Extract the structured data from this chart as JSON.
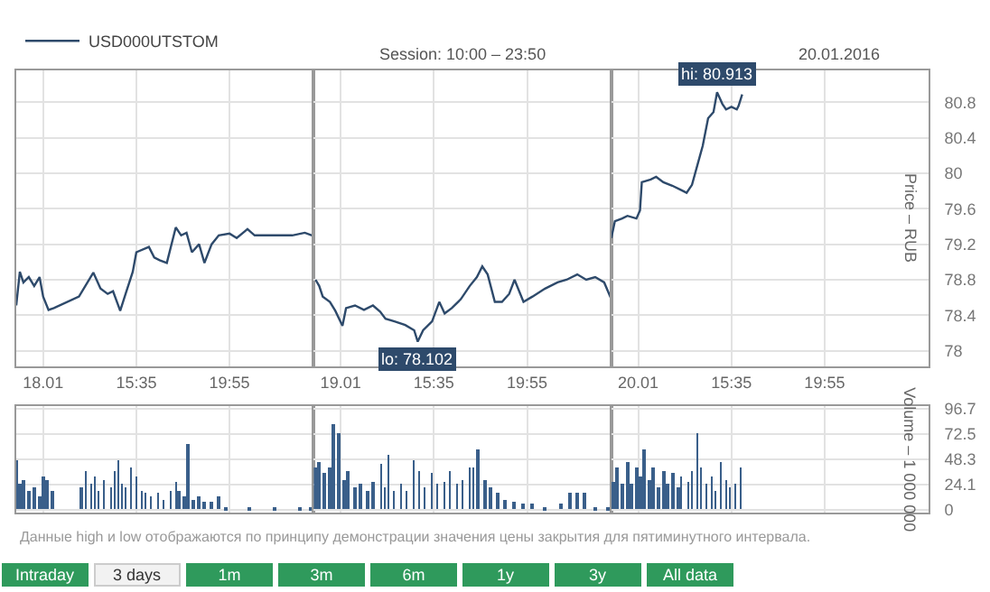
{
  "chart_data": [
    {
      "type": "line",
      "legend": "top left",
      "grid": true,
      "marker": "none",
      "line_style": "solid",
      "tick_labels": "x",
      "xlim": [
        "2016-01-18T10:00",
        "2016-01-18T23:50"
      ],
      "xticks": [
        {
          "value": "2016-01-18T11:15",
          "label": "18.01"
        },
        {
          "value": "2016-01-18T15:35",
          "label": "15:35"
        },
        {
          "value": "2016-01-18T19:55",
          "label": "19:55"
        }
      ],
      "ylim": [
        77.82,
        81.16
      ],
      "yticks": [
        78,
        78.4,
        78.8,
        79.2,
        79.6,
        80,
        80.4,
        80.8
      ],
      "series": [
        {
          "name": "USD000UTSTOM",
          "color": "#2e4a6b",
          "x": [
            "2016-01-18T10:00",
            "2016-01-18T10:10",
            "2016-01-18T10:20",
            "2016-01-18T10:35",
            "2016-01-18T10:50",
            "2016-01-18T11:05",
            "2016-01-18T11:15",
            "2016-01-18T11:30",
            "2016-01-18T11:45",
            "2016-01-18T12:55",
            "2016-01-18T13:35",
            "2016-01-18T13:55",
            "2016-01-18T14:15",
            "2016-01-18T14:30",
            "2016-01-18T14:50",
            "2016-01-18T15:05",
            "2016-01-18T15:25",
            "2016-01-18T15:35",
            "2016-01-18T16:10",
            "2016-01-18T16:25",
            "2016-01-18T16:40",
            "2016-01-18T17:00",
            "2016-01-18T17:25",
            "2016-01-18T17:40",
            "2016-01-18T17:55",
            "2016-01-18T18:10",
            "2016-01-18T18:30",
            "2016-01-18T18:45",
            "2016-01-18T19:05",
            "2016-01-18T19:25",
            "2016-01-18T19:55",
            "2016-01-18T20:15",
            "2016-01-18T20:45",
            "2016-01-18T21:05",
            "2016-01-18T21:55",
            "2016-01-18T22:50",
            "2016-01-18T23:25",
            "2016-01-18T23:45"
          ],
          "values": [
            78.51,
            78.89,
            78.77,
            78.83,
            78.73,
            78.83,
            78.61,
            78.46,
            78.48,
            78.61,
            78.88,
            78.7,
            78.64,
            78.67,
            78.45,
            78.64,
            78.89,
            79.11,
            79.17,
            79.05,
            79.02,
            78.99,
            79.39,
            79.3,
            79.33,
            79.11,
            79.2,
            78.99,
            79.2,
            79.3,
            79.32,
            79.27,
            79.37,
            79.3,
            79.3,
            79.3,
            79.33,
            79.3
          ]
        }
      ]
    },
    {
      "type": "line",
      "subtitle": "Session: 10:00 – 23:50",
      "grid": true,
      "marker": "none",
      "line_style": "solid",
      "tick_labels": "x",
      "annotations": [
        {
          "text": "lo: 78.102",
          "x": "2016-01-19T14:50",
          "y": 78.102
        }
      ],
      "xlim": [
        "2016-01-19T10:00",
        "2016-01-19T23:50"
      ],
      "xticks": [
        {
          "value": "2016-01-19T11:15",
          "label": "19.01"
        },
        {
          "value": "2016-01-19T15:35",
          "label": "15:35"
        },
        {
          "value": "2016-01-19T19:55",
          "label": "19:55"
        }
      ],
      "ylim": [
        77.82,
        81.16
      ],
      "yticks": [
        78,
        78.4,
        78.8,
        79.2,
        79.6,
        80,
        80.4,
        80.8
      ],
      "series": [
        {
          "color": "#2e4a6b",
          "x": [
            "2016-01-19T10:05",
            "2016-01-19T10:15",
            "2016-01-19T10:25",
            "2016-01-19T10:45",
            "2016-01-19T11:00",
            "2016-01-19T11:20",
            "2016-01-19T11:30",
            "2016-01-19T11:55",
            "2016-01-19T12:20",
            "2016-01-19T12:45",
            "2016-01-19T13:05",
            "2016-01-19T13:20",
            "2016-01-19T13:45",
            "2016-01-19T14:15",
            "2016-01-19T14:40",
            "2016-01-19T14:50",
            "2016-01-19T15:05",
            "2016-01-19T15:30",
            "2016-01-19T15:50",
            "2016-01-19T16:05",
            "2016-01-19T16:25",
            "2016-01-19T16:50",
            "2016-01-19T17:15",
            "2016-01-19T17:35",
            "2016-01-19T17:50",
            "2016-01-19T18:05",
            "2016-01-19T18:25",
            "2016-01-19T18:45",
            "2016-01-19T19:05",
            "2016-01-19T19:20",
            "2016-01-19T19:45",
            "2016-01-19T20:10",
            "2016-01-19T20:45",
            "2016-01-19T21:20",
            "2016-01-19T21:45",
            "2016-01-19T22:15",
            "2016-01-19T22:40",
            "2016-01-19T23:05",
            "2016-01-19T23:30",
            "2016-01-19T23:50"
          ],
          "values": [
            78.8,
            78.73,
            78.61,
            78.55,
            78.45,
            78.28,
            78.48,
            78.51,
            78.46,
            78.51,
            78.44,
            78.36,
            78.33,
            78.29,
            78.23,
            78.102,
            78.23,
            78.33,
            78.55,
            78.42,
            78.48,
            78.58,
            78.73,
            78.83,
            78.95,
            78.86,
            78.55,
            78.55,
            78.64,
            78.8,
            78.55,
            78.61,
            78.7,
            78.77,
            78.8,
            78.86,
            78.8,
            78.83,
            78.77,
            78.58
          ]
        }
      ]
    },
    {
      "type": "line",
      "ylabel": "Price – RUB",
      "grid": true,
      "marker": "none",
      "line_style": "solid",
      "annotations": [
        "20.01.2016",
        {
          "text": "hi: 80.913",
          "x": "2016-01-20T14:55",
          "y": 80.913
        }
      ],
      "xlim": [
        "2016-01-20T10:00",
        "2016-01-21T00:45"
      ],
      "xticks": [
        {
          "value": "2016-01-20T11:15",
          "label": "20.01"
        },
        {
          "value": "2016-01-20T15:35",
          "label": "15:35"
        },
        {
          "value": "2016-01-20T19:55",
          "label": "19:55"
        }
      ],
      "ylim": [
        77.82,
        81.16
      ],
      "yticks": [
        78,
        78.4,
        78.8,
        79.2,
        79.6,
        80,
        80.4,
        80.8
      ],
      "series": [
        {
          "color": "#2e4a6b",
          "x": [
            "2016-01-20T10:00",
            "2016-01-20T10:10",
            "2016-01-20T10:30",
            "2016-01-20T10:45",
            "2016-01-20T11:10",
            "2016-01-20T11:20",
            "2016-01-20T11:25",
            "2016-01-20T11:50",
            "2016-01-20T12:05",
            "2016-01-20T12:25",
            "2016-01-20T12:50",
            "2016-01-20T13:15",
            "2016-01-20T13:30",
            "2016-01-20T13:45",
            "2016-01-20T14:00",
            "2016-01-20T14:15",
            "2016-01-20T14:30",
            "2016-01-20T14:45",
            "2016-01-20T14:55",
            "2016-01-20T15:10",
            "2016-01-20T15:20",
            "2016-01-20T15:35",
            "2016-01-20T15:50",
            "2016-01-20T15:55",
            "2016-01-20T16:05"
          ],
          "values": [
            79.27,
            79.46,
            79.49,
            79.52,
            79.49,
            79.58,
            79.9,
            79.93,
            79.96,
            79.9,
            79.86,
            79.81,
            79.78,
            79.87,
            80.09,
            80.31,
            80.62,
            80.69,
            80.913,
            80.78,
            80.72,
            80.75,
            80.72,
            80.76,
            80.89
          ]
        }
      ]
    },
    {
      "type": "bar",
      "grid": true,
      "tick_labels": false,
      "annotations": [
        "Данные high и low отображаются по принципу демонстрации значения цены закрытия для пятиминутного интервала."
      ],
      "xlim": [
        "2016-01-18T10:00",
        "2016-01-18T23:50"
      ],
      "ylim": [
        -2.5,
        99
      ],
      "yticks": [
        0,
        24.1,
        48.3,
        72.5,
        96.7
      ],
      "series": [
        {
          "color": "#3a5f8a",
          "x": [
            "2016-01-18T10:00",
            "2016-01-18T10:10",
            "2016-01-18T10:20",
            "2016-01-18T10:35",
            "2016-01-18T10:50",
            "2016-01-18T11:05",
            "2016-01-18T11:15",
            "2016-01-18T11:25",
            "2016-01-18T11:40",
            "2016-01-18T13:00",
            "2016-01-18T13:15",
            "2016-01-18T13:30",
            "2016-01-18T13:40",
            "2016-01-18T13:50",
            "2016-01-18T14:05",
            "2016-01-18T14:25",
            "2016-01-18T14:35",
            "2016-01-18T14:45",
            "2016-01-18T14:55",
            "2016-01-18T15:05",
            "2016-01-18T15:20",
            "2016-01-18T15:35",
            "2016-01-18T15:50",
            "2016-01-18T16:00",
            "2016-01-18T16:15",
            "2016-01-18T16:35",
            "2016-01-18T16:50",
            "2016-01-18T17:10",
            "2016-01-18T17:25",
            "2016-01-18T17:35",
            "2016-01-18T17:50",
            "2016-01-18T18:00",
            "2016-01-18T18:15",
            "2016-01-18T18:30",
            "2016-01-18T18:45",
            "2016-01-18T19:05",
            "2016-01-18T19:25",
            "2016-01-18T19:45",
            "2016-01-18T20:50",
            "2016-01-18T22:00",
            "2016-01-18T23:10",
            "2016-01-18T23:40"
          ],
          "values": [
            48,
            24,
            29,
            18,
            21,
            13,
            32,
            29,
            18,
            21,
            37,
            24,
            32,
            18,
            29,
            21,
            37,
            48,
            24,
            21,
            40,
            32,
            18,
            16,
            13,
            16,
            10,
            18,
            26,
            18,
            13,
            62,
            10,
            13,
            7,
            7,
            13,
            3,
            2,
            1,
            1,
            1
          ]
        }
      ]
    },
    {
      "type": "bar",
      "grid": true,
      "tick_labels": false,
      "xlim": [
        "2016-01-19T10:00",
        "2016-01-19T23:50"
      ],
      "ylim": [
        -2.5,
        99
      ],
      "yticks": [
        0,
        24.1,
        48.3,
        72.5,
        96.7
      ],
      "series": [
        {
          "color": "#3a5f8a",
          "x": [
            "2016-01-19T10:05",
            "2016-01-19T10:15",
            "2016-01-19T10:30",
            "2016-01-19T10:45",
            "2016-01-19T10:55",
            "2016-01-19T11:10",
            "2016-01-19T11:25",
            "2016-01-19T11:35",
            "2016-01-19T11:55",
            "2016-01-19T12:10",
            "2016-01-19T12:30",
            "2016-01-19T12:45",
            "2016-01-19T13:10",
            "2016-01-19T13:20",
            "2016-01-19T13:30",
            "2016-01-19T13:45",
            "2016-01-19T14:05",
            "2016-01-19T14:20",
            "2016-01-19T14:40",
            "2016-01-19T14:55",
            "2016-01-19T15:10",
            "2016-01-19T15:30",
            "2016-01-19T15:45",
            "2016-01-19T16:05",
            "2016-01-19T16:20",
            "2016-01-19T16:40",
            "2016-01-19T16:55",
            "2016-01-19T17:15",
            "2016-01-19T17:25",
            "2016-01-19T17:40",
            "2016-01-19T18:00",
            "2016-01-19T18:15",
            "2016-01-19T18:35",
            "2016-01-19T18:55",
            "2016-01-19T19:20",
            "2016-01-19T19:45",
            "2016-01-19T20:10",
            "2016-01-19T20:45",
            "2016-01-19T21:30",
            "2016-01-19T21:55",
            "2016-01-19T22:15",
            "2016-01-19T22:35",
            "2016-01-19T23:05",
            "2016-01-19T23:40"
          ],
          "values": [
            41,
            46,
            35,
            40,
            81,
            73,
            29,
            37,
            21,
            24,
            18,
            26,
            43,
            21,
            52,
            18,
            24,
            18,
            47,
            37,
            21,
            35,
            24,
            26,
            37,
            24,
            29,
            40,
            40,
            57,
            29,
            21,
            16,
            10,
            7,
            5,
            5,
            3,
            5,
            16,
            16,
            16,
            1,
            1
          ]
        }
      ]
    },
    {
      "type": "bar",
      "ylabel": "Volume – 1 000 000",
      "grid": true,
      "tick_labels": "y",
      "xlim": [
        "2016-01-20T10:00",
        "2016-01-21T00:45"
      ],
      "ylim": [
        -2.5,
        99
      ],
      "yticks": [
        0,
        24.1,
        48.3,
        72.5,
        96.7
      ],
      "series": [
        {
          "color": "#3a5f8a",
          "x": [
            "2016-01-20T10:05",
            "2016-01-20T10:15",
            "2016-01-20T10:30",
            "2016-01-20T10:45",
            "2016-01-20T10:55",
            "2016-01-20T11:10",
            "2016-01-20T11:20",
            "2016-01-20T11:30",
            "2016-01-20T11:45",
            "2016-01-20T11:55",
            "2016-01-20T12:10",
            "2016-01-20T12:25",
            "2016-01-20T12:35",
            "2016-01-20T12:50",
            "2016-01-20T13:05",
            "2016-01-20T13:15",
            "2016-01-20T13:35",
            "2016-01-20T13:45",
            "2016-01-20T14:00",
            "2016-01-20T14:10",
            "2016-01-20T14:25",
            "2016-01-20T14:40",
            "2016-01-20T14:50",
            "2016-01-20T15:05",
            "2016-01-20T15:20",
            "2016-01-20T15:30",
            "2016-01-20T15:45",
            "2016-01-20T16:00"
          ],
          "values": [
            26,
            40,
            24,
            46,
            24,
            40,
            32,
            57,
            29,
            40,
            21,
            37,
            24,
            35,
            21,
            32,
            26,
            37,
            73,
            40,
            24,
            32,
            18,
            46,
            29,
            21,
            24,
            40
          ]
        }
      ]
    },
    {
      "type": "other",
      "annotations": [
        "Intraday",
        "3 days",
        "1m",
        "3m",
        "6m",
        "1y",
        "3y",
        "All data"
      ],
      "colors": [
        "#2f9a5c",
        "#f2f2f2",
        "#2f9a5c",
        "#2f9a5c",
        "#2f9a5c",
        "#2f9a5c",
        "#2f9a5c",
        "#2f9a5c"
      ]
    }
  ]
}
